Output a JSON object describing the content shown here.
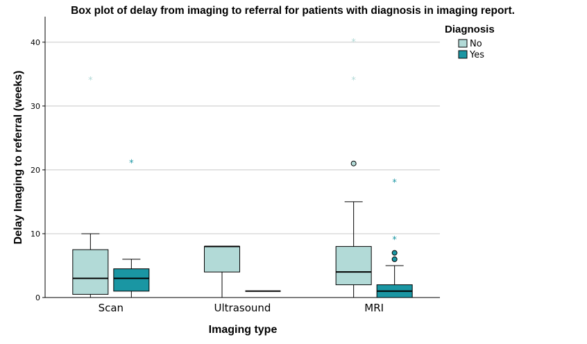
{
  "chart_data": {
    "type": "box",
    "title": "Box plot of delay from imaging to referral for patients with diagnosis in imaging report.",
    "xlabel": "Imaging type",
    "ylabel": "Delay Imaging to referral (weeks)",
    "categories": [
      "Scan",
      "Ultrasound",
      "MRI"
    ],
    "ylim": [
      0,
      44
    ],
    "yticks": [
      0,
      10,
      20,
      30,
      40
    ],
    "grid": "horizontal",
    "legend": {
      "title": "Diagnosis",
      "position": "top-right"
    },
    "series": [
      {
        "name": "No",
        "color": "#b2dad7",
        "boxes": [
          {
            "category": "Scan",
            "whisker_low": 0,
            "q1": 0.5,
            "median": 3,
            "q3": 7.5,
            "whisker_high": 10,
            "outliers": [],
            "extremes": [
              34
            ]
          },
          {
            "category": "Ultrasound",
            "whisker_low": 0,
            "q1": 4,
            "median": 8,
            "q3": 8,
            "whisker_high": 8,
            "outliers": [],
            "extremes": []
          },
          {
            "category": "MRI",
            "whisker_low": 0,
            "q1": 2,
            "median": 4,
            "q3": 8,
            "whisker_high": 15,
            "outliers": [
              21
            ],
            "extremes": [
              34,
              40
            ]
          }
        ]
      },
      {
        "name": "Yes",
        "color": "#1a96a3",
        "boxes": [
          {
            "category": "Scan",
            "whisker_low": 0,
            "q1": 1,
            "median": 3,
            "q3": 4.5,
            "whisker_high": 6,
            "outliers": [],
            "extremes": [
              21
            ]
          },
          {
            "category": "Ultrasound",
            "whisker_low": 1,
            "q1": 1,
            "median": 1,
            "q3": 1,
            "whisker_high": 1,
            "outliers": [],
            "extremes": []
          },
          {
            "category": "MRI",
            "whisker_low": 0,
            "q1": 0,
            "median": 1,
            "q3": 2,
            "whisker_high": 5,
            "outliers": [
              6,
              7
            ],
            "extremes": [
              9,
              18
            ]
          }
        ]
      }
    ]
  }
}
